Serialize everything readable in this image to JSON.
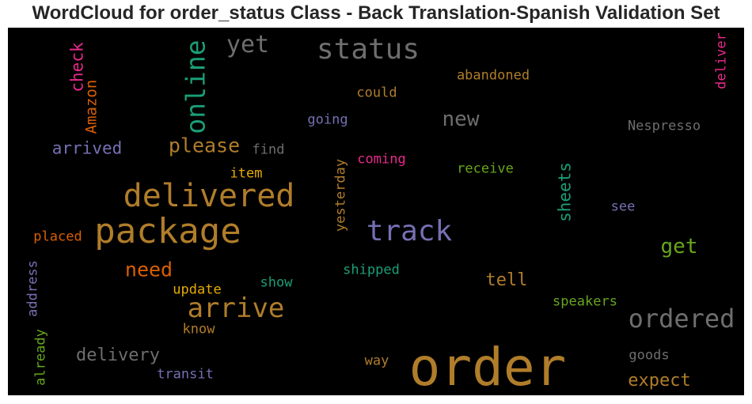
{
  "title": "WordCloud for order_status Class - Back Translation-Spanish Validation Set",
  "words": [
    {
      "text": "order",
      "color": "#b07d2a",
      "rotated": false
    },
    {
      "text": "package",
      "color": "#b07d2a",
      "rotated": false
    },
    {
      "text": "delivered",
      "color": "#b07d2a",
      "rotated": false
    },
    {
      "text": "status",
      "color": "#6e6e6e",
      "rotated": false
    },
    {
      "text": "track",
      "color": "#7570b3",
      "rotated": false
    },
    {
      "text": "arrive",
      "color": "#b07d2a",
      "rotated": false
    },
    {
      "text": "ordered",
      "color": "#6e6e6e",
      "rotated": false
    },
    {
      "text": "online",
      "color": "#1b9e77",
      "rotated": true
    },
    {
      "text": "yet",
      "color": "#6e6e6e",
      "rotated": false
    },
    {
      "text": "new",
      "color": "#6e6e6e",
      "rotated": false
    },
    {
      "text": "please",
      "color": "#b07d2a",
      "rotated": false
    },
    {
      "text": "get",
      "color": "#66a61e",
      "rotated": false
    },
    {
      "text": "need",
      "color": "#d95f02",
      "rotated": false
    },
    {
      "text": "delivery",
      "color": "#6e6e6e",
      "rotated": false
    },
    {
      "text": "expect",
      "color": "#b07d2a",
      "rotated": false
    },
    {
      "text": "tell",
      "color": "#b07d2a",
      "rotated": false
    },
    {
      "text": "arrived",
      "color": "#7570b3",
      "rotated": false
    },
    {
      "text": "check",
      "color": "#e7298a",
      "rotated": true
    },
    {
      "text": "Amazon",
      "color": "#d95f02",
      "rotated": true
    },
    {
      "text": "sheets",
      "color": "#1b9e77",
      "rotated": true
    },
    {
      "text": "abandoned",
      "color": "#b07d2a",
      "rotated": false
    },
    {
      "text": "could",
      "color": "#b07d2a",
      "rotated": false
    },
    {
      "text": "going",
      "color": "#7570b3",
      "rotated": false
    },
    {
      "text": "Nespresso",
      "color": "#6e6e6e",
      "rotated": false
    },
    {
      "text": "find",
      "color": "#6e6e6e",
      "rotated": false
    },
    {
      "text": "coming",
      "color": "#e7298a",
      "rotated": false
    },
    {
      "text": "receive",
      "color": "#66a61e",
      "rotated": false
    },
    {
      "text": "item",
      "color": "#e6ab02",
      "rotated": false
    },
    {
      "text": "yesterday",
      "color": "#b07d2a",
      "rotated": true
    },
    {
      "text": "see",
      "color": "#7570b3",
      "rotated": false
    },
    {
      "text": "placed",
      "color": "#d95f02",
      "rotated": false
    },
    {
      "text": "deliver",
      "color": "#e7298a",
      "rotated": true
    },
    {
      "text": "shipped",
      "color": "#1b9e77",
      "rotated": false
    },
    {
      "text": "show",
      "color": "#1b9e77",
      "rotated": false
    },
    {
      "text": "update",
      "color": "#e6ab02",
      "rotated": false
    },
    {
      "text": "address",
      "color": "#7570b3",
      "rotated": true
    },
    {
      "text": "speakers",
      "color": "#66a61e",
      "rotated": false
    },
    {
      "text": "know",
      "color": "#b07d2a",
      "rotated": false
    },
    {
      "text": "already",
      "color": "#66a61e",
      "rotated": true
    },
    {
      "text": "goods",
      "color": "#6e6e6e",
      "rotated": false
    },
    {
      "text": "way",
      "color": "#b07d2a",
      "rotated": false
    },
    {
      "text": "transit",
      "color": "#7570b3",
      "rotated": false
    }
  ]
}
